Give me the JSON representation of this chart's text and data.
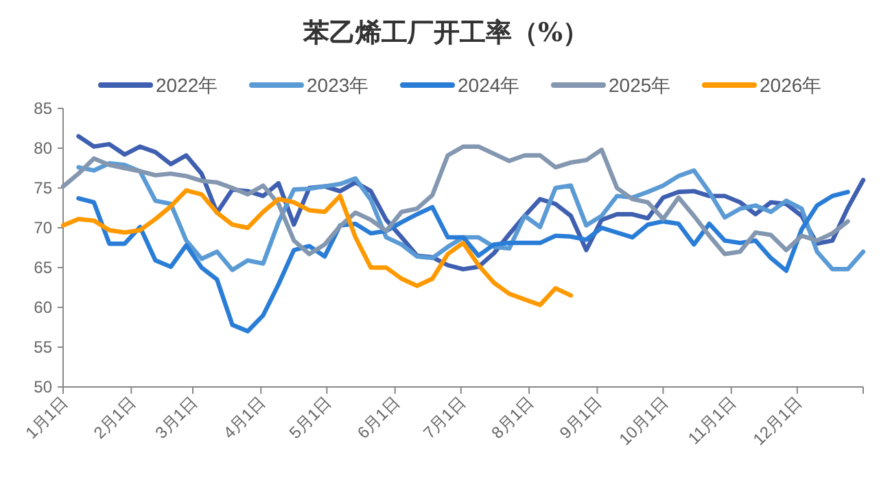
{
  "chart_data": {
    "type": "line",
    "title": "苯乙烯工厂开工率（%）",
    "legend": "top",
    "x": [
      "--01-01",
      "--01-08",
      "--01-15",
      "--01-22",
      "--01-29",
      "--02-05",
      "--02-12",
      "--02-19",
      "--02-26",
      "--03-05",
      "--03-12",
      "--03-19",
      "--03-26",
      "--04-02",
      "--04-09",
      "--04-16",
      "--04-23",
      "--04-30",
      "--05-07",
      "--05-14",
      "--05-21",
      "--05-28",
      "--06-04",
      "--06-11",
      "--06-18",
      "--06-25",
      "--07-02",
      "--07-09",
      "--07-16",
      "--07-23",
      "--07-30",
      "--08-06",
      "--08-13",
      "--08-20",
      "--08-27",
      "--09-03",
      "--09-10",
      "--09-17",
      "--09-24",
      "--10-01",
      "--10-08",
      "--10-15",
      "--10-22",
      "--10-29",
      "--11-05",
      "--11-12",
      "--11-19",
      "--11-26",
      "--12-03",
      "--12-10",
      "--12-17",
      "--12-24",
      "--12-31"
    ],
    "xlim": [
      "--01-01",
      "--12-31"
    ],
    "xticks": [
      {
        "value": "--01-01",
        "label": "1月1日"
      },
      {
        "value": "--02-01",
        "label": "2月1日"
      },
      {
        "value": "--03-01",
        "label": "3月1日"
      },
      {
        "value": "--04-01",
        "label": "4月1日"
      },
      {
        "value": "--05-01",
        "label": "5月1日"
      },
      {
        "value": "--06-01",
        "label": "6月1日"
      },
      {
        "value": "--07-01",
        "label": "7月1日"
      },
      {
        "value": "--08-01",
        "label": "8月1日"
      },
      {
        "value": "--09-01",
        "label": "9月1日"
      },
      {
        "value": "--10-01",
        "label": "10月1日"
      },
      {
        "value": "--11-01",
        "label": "11月1日"
      },
      {
        "value": "--12-01",
        "label": "12月1日"
      }
    ],
    "ylim": [
      50,
      85
    ],
    "yticks": [
      50,
      55,
      60,
      65,
      70,
      75,
      80,
      85
    ],
    "series": [
      {
        "name": "2022年",
        "color": "#3f5fb0",
        "values": [
          null,
          81.5,
          80.2,
          80.5,
          79.2,
          80.2,
          79.5,
          78.0,
          79.1,
          76.8,
          71.9,
          74.8,
          74.6,
          74.0,
          75.6,
          70.4,
          75.0,
          75.2,
          74.6,
          75.7,
          74.6,
          71.0,
          68.8,
          66.5,
          66.3,
          65.3,
          64.8,
          65.1,
          66.8,
          69.2,
          71.5,
          73.6,
          73.0,
          71.5,
          67.2,
          71.0,
          71.7,
          71.7,
          71.2,
          73.8,
          74.5,
          74.6,
          74.0,
          74.0,
          73.2,
          71.7,
          73.2,
          73.0,
          71.5,
          68.0,
          68.4,
          72.5,
          76.0
        ]
      },
      {
        "name": "2023年",
        "color": "#5b9bd5",
        "values": [
          null,
          77.6,
          77.2,
          78.1,
          77.9,
          77.1,
          73.4,
          73.0,
          68.4,
          66.1,
          67.0,
          64.7,
          65.9,
          65.5,
          70.7,
          74.8,
          74.9,
          75.2,
          75.5,
          76.2,
          73.5,
          68.8,
          67.9,
          66.4,
          66.2,
          67.6,
          68.8,
          68.8,
          67.6,
          67.4,
          71.5,
          70.1,
          75.0,
          75.3,
          70.3,
          71.5,
          74.0,
          73.8,
          74.5,
          75.3,
          76.5,
          77.2,
          74.5,
          71.3,
          72.4,
          72.8,
          72.0,
          73.4,
          72.4,
          67.0,
          64.8,
          64.8,
          67.0
        ]
      },
      {
        "name": "2024年",
        "color": "#2a7dd6",
        "values": [
          null,
          73.7,
          73.2,
          68.0,
          68.0,
          70.1,
          65.9,
          65.1,
          67.8,
          65.0,
          63.5,
          57.8,
          57.0,
          59.0,
          62.9,
          67.2,
          67.7,
          66.4,
          70.3,
          70.5,
          69.3,
          69.6,
          70.7,
          71.7,
          72.6,
          68.8,
          68.8,
          66.5,
          67.9,
          68.1,
          68.1,
          68.1,
          69.0,
          68.9,
          68.5,
          70.0,
          69.4,
          68.8,
          70.4,
          70.8,
          70.5,
          67.9,
          70.5,
          68.4,
          68.1,
          68.4,
          66.2,
          64.6,
          69.8,
          72.8,
          74.0,
          74.5,
          null
        ]
      },
      {
        "name": "2025年",
        "color": "#8497b0",
        "values": [
          75.2,
          76.8,
          78.7,
          77.9,
          77.5,
          77.1,
          76.6,
          76.8,
          76.5,
          75.9,
          75.7,
          75.0,
          74.2,
          75.3,
          73.0,
          68.4,
          66.7,
          67.9,
          70.2,
          71.9,
          71.0,
          69.6,
          72.0,
          72.4,
          74.1,
          79.1,
          80.2,
          80.2,
          79.3,
          78.4,
          79.1,
          79.1,
          77.6,
          78.2,
          78.5,
          79.8,
          75.0,
          73.6,
          73.2,
          71.1,
          73.8,
          71.5,
          69.0,
          66.7,
          67.0,
          69.4,
          69.1,
          67.2,
          69.0,
          68.4,
          69.3,
          70.8,
          null
        ]
      },
      {
        "name": "2026年",
        "color": "#ff9900",
        "values": [
          70.3,
          71.1,
          70.9,
          69.7,
          69.4,
          69.7,
          71.1,
          72.7,
          74.7,
          74.2,
          71.9,
          70.4,
          70.0,
          72.0,
          73.6,
          73.2,
          72.2,
          72.0,
          74.0,
          68.8,
          65.0,
          65.0,
          63.6,
          62.7,
          63.6,
          66.7,
          68.1,
          65.3,
          63.1,
          61.7,
          61.0,
          60.3,
          62.4,
          61.5,
          null,
          null,
          null,
          null,
          null,
          null,
          null,
          null,
          null,
          null,
          null,
          null,
          null,
          null,
          null,
          null,
          null,
          null,
          null
        ]
      }
    ]
  }
}
